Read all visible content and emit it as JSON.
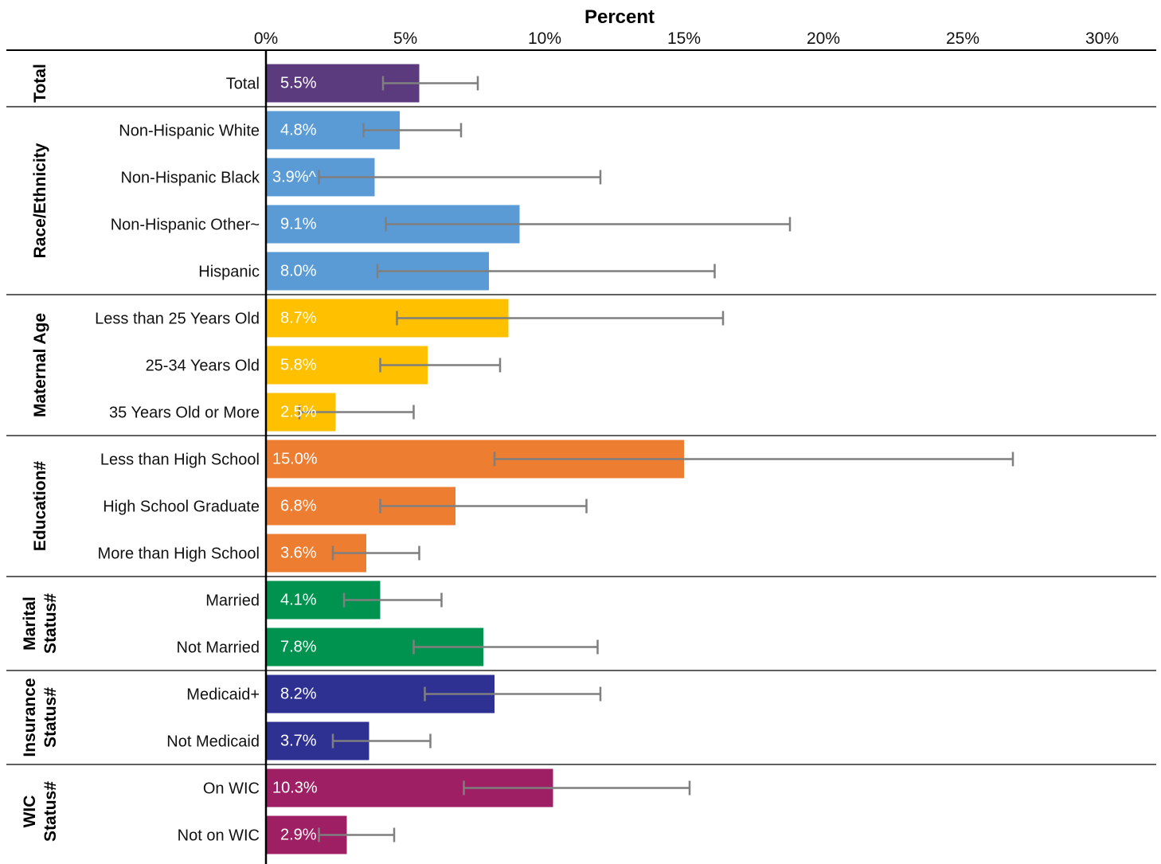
{
  "chart_data": {
    "type": "bar",
    "orientation": "horizontal",
    "xlabel": "Percent",
    "xlim": [
      0,
      32
    ],
    "xticks": [
      0,
      5,
      10,
      15,
      20,
      25,
      30
    ],
    "xtick_labels": [
      "0%",
      "5%",
      "10%",
      "15%",
      "20%",
      "25%",
      "30%"
    ],
    "error_bar_color": "#7f7f7f",
    "groups": [
      {
        "name": [
          "Total"
        ],
        "color": "#5b3a7e",
        "rows": [
          {
            "label": "Total",
            "value": 5.5,
            "value_label": "5.5%",
            "ci": [
              4.2,
              7.6
            ]
          }
        ]
      },
      {
        "name": [
          "Race/Ethnicity"
        ],
        "color": "#5b9bd5",
        "rows": [
          {
            "label": "Non-Hispanic White",
            "value": 4.8,
            "value_label": "4.8%",
            "ci": [
              3.5,
              7.0
            ]
          },
          {
            "label": "Non-Hispanic Black",
            "value": 3.9,
            "value_label": "3.9%^",
            "ci": [
              1.9,
              12.0
            ]
          },
          {
            "label": "Non-Hispanic Other~",
            "value": 9.1,
            "value_label": "9.1%",
            "ci": [
              4.3,
              18.8
            ]
          },
          {
            "label": "Hispanic",
            "value": 8.0,
            "value_label": "8.0%",
            "ci": [
              4.0,
              16.1
            ]
          }
        ]
      },
      {
        "name": [
          "Maternal Age"
        ],
        "color": "#ffc000",
        "rows": [
          {
            "label": "Less than 25 Years Old",
            "value": 8.7,
            "value_label": "8.7%",
            "ci": [
              4.7,
              16.4
            ]
          },
          {
            "label": "25-34 Years Old",
            "value": 5.8,
            "value_label": "5.8%",
            "ci": [
              4.1,
              8.4
            ]
          },
          {
            "label": "35 Years Old or More",
            "value": 2.5,
            "value_label": "2.5%",
            "ci": [
              1.2,
              5.3
            ]
          }
        ]
      },
      {
        "name": [
          "Education#"
        ],
        "color": "#ed7d31",
        "rows": [
          {
            "label": "Less than High School",
            "value": 15.0,
            "value_label": "15.0%",
            "ci": [
              8.2,
              26.8
            ]
          },
          {
            "label": "High School Graduate",
            "value": 6.8,
            "value_label": "6.8%",
            "ci": [
              4.1,
              11.5
            ]
          },
          {
            "label": "More than High School",
            "value": 3.6,
            "value_label": "3.6%",
            "ci": [
              2.4,
              5.5
            ]
          }
        ]
      },
      {
        "name": [
          "Marital",
          "Status#"
        ],
        "color": "#00934f",
        "rows": [
          {
            "label": "Married",
            "value": 4.1,
            "value_label": "4.1%",
            "ci": [
              2.8,
              6.3
            ]
          },
          {
            "label": "Not Married",
            "value": 7.8,
            "value_label": "7.8%",
            "ci": [
              5.3,
              11.9
            ]
          }
        ]
      },
      {
        "name": [
          "Insurance",
          "Status#"
        ],
        "color": "#2e3192",
        "rows": [
          {
            "label": "Medicaid+",
            "value": 8.2,
            "value_label": "8.2%",
            "ci": [
              5.7,
              12.0
            ]
          },
          {
            "label": "Not Medicaid",
            "value": 3.7,
            "value_label": "3.7%",
            "ci": [
              2.4,
              5.9
            ]
          }
        ]
      },
      {
        "name": [
          "WIC",
          "Status#"
        ],
        "color": "#9e1f63",
        "rows": [
          {
            "label": "On WIC",
            "value": 10.3,
            "value_label": "10.3%",
            "ci": [
              7.1,
              15.2
            ]
          },
          {
            "label": "Not on WIC",
            "value": 2.9,
            "value_label": "2.9%",
            "ci": [
              1.9,
              4.6
            ]
          }
        ]
      }
    ]
  }
}
